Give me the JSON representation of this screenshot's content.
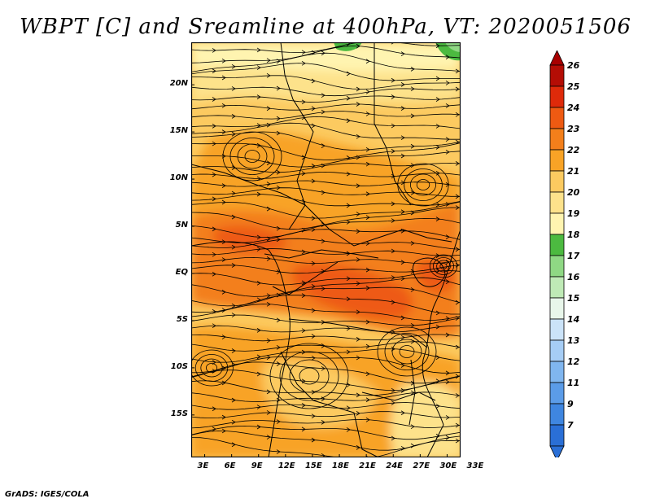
{
  "title": "WBPT [C] and Sreamline at 400hPa, VT: 2020051506",
  "footer": "GrADS: IGES/COLA",
  "map": {
    "latitude_labels": [
      "20N",
      "15N",
      "10N",
      "5N",
      "EQ",
      "5S",
      "10S",
      "15S"
    ],
    "latitude_values": [
      20,
      15,
      10,
      5,
      0,
      -5,
      -10,
      -15
    ],
    "longitude_labels": [
      "3E",
      "6E",
      "9E",
      "12E",
      "15E",
      "18E",
      "21E",
      "24E",
      "27E",
      "30E",
      "33E"
    ],
    "longitude_values": [
      3,
      6,
      9,
      12,
      15,
      18,
      21,
      24,
      27,
      30,
      33
    ],
    "lon_range": [
      0,
      30
    ],
    "lat_range": [
      -19.5,
      24.5
    ]
  },
  "legend": {
    "labels": [
      "7",
      "9",
      "11",
      "12",
      "13",
      "14",
      "15",
      "16",
      "17",
      "18",
      "19",
      "20",
      "21",
      "22",
      "23",
      "24",
      "25",
      "26"
    ],
    "colors": [
      "#2a6fd6",
      "#3f86e0",
      "#5b9ce8",
      "#80b6ef",
      "#a6cdf5",
      "#cbe3f8",
      "#e8f6ea",
      "#bfeab6",
      "#8fd884",
      "#4cba40",
      "#fff4b0",
      "#fde28b",
      "#fcca60",
      "#f8a326",
      "#f37f1b",
      "#ee5a12",
      "#de2a0a",
      "#b40d05"
    ],
    "low_arrow_color": "#2a6fd6",
    "high_arrow_color": "#a80000"
  },
  "field_colors": {
    "c20": "#fde28b",
    "c21": "#fcca60",
    "c22": "#f8a326",
    "c23": "#f37f1b",
    "c24": "#ee5a12",
    "c19": "#fff4b0",
    "c18": "#4cba40",
    "c17": "#8fd884"
  }
}
